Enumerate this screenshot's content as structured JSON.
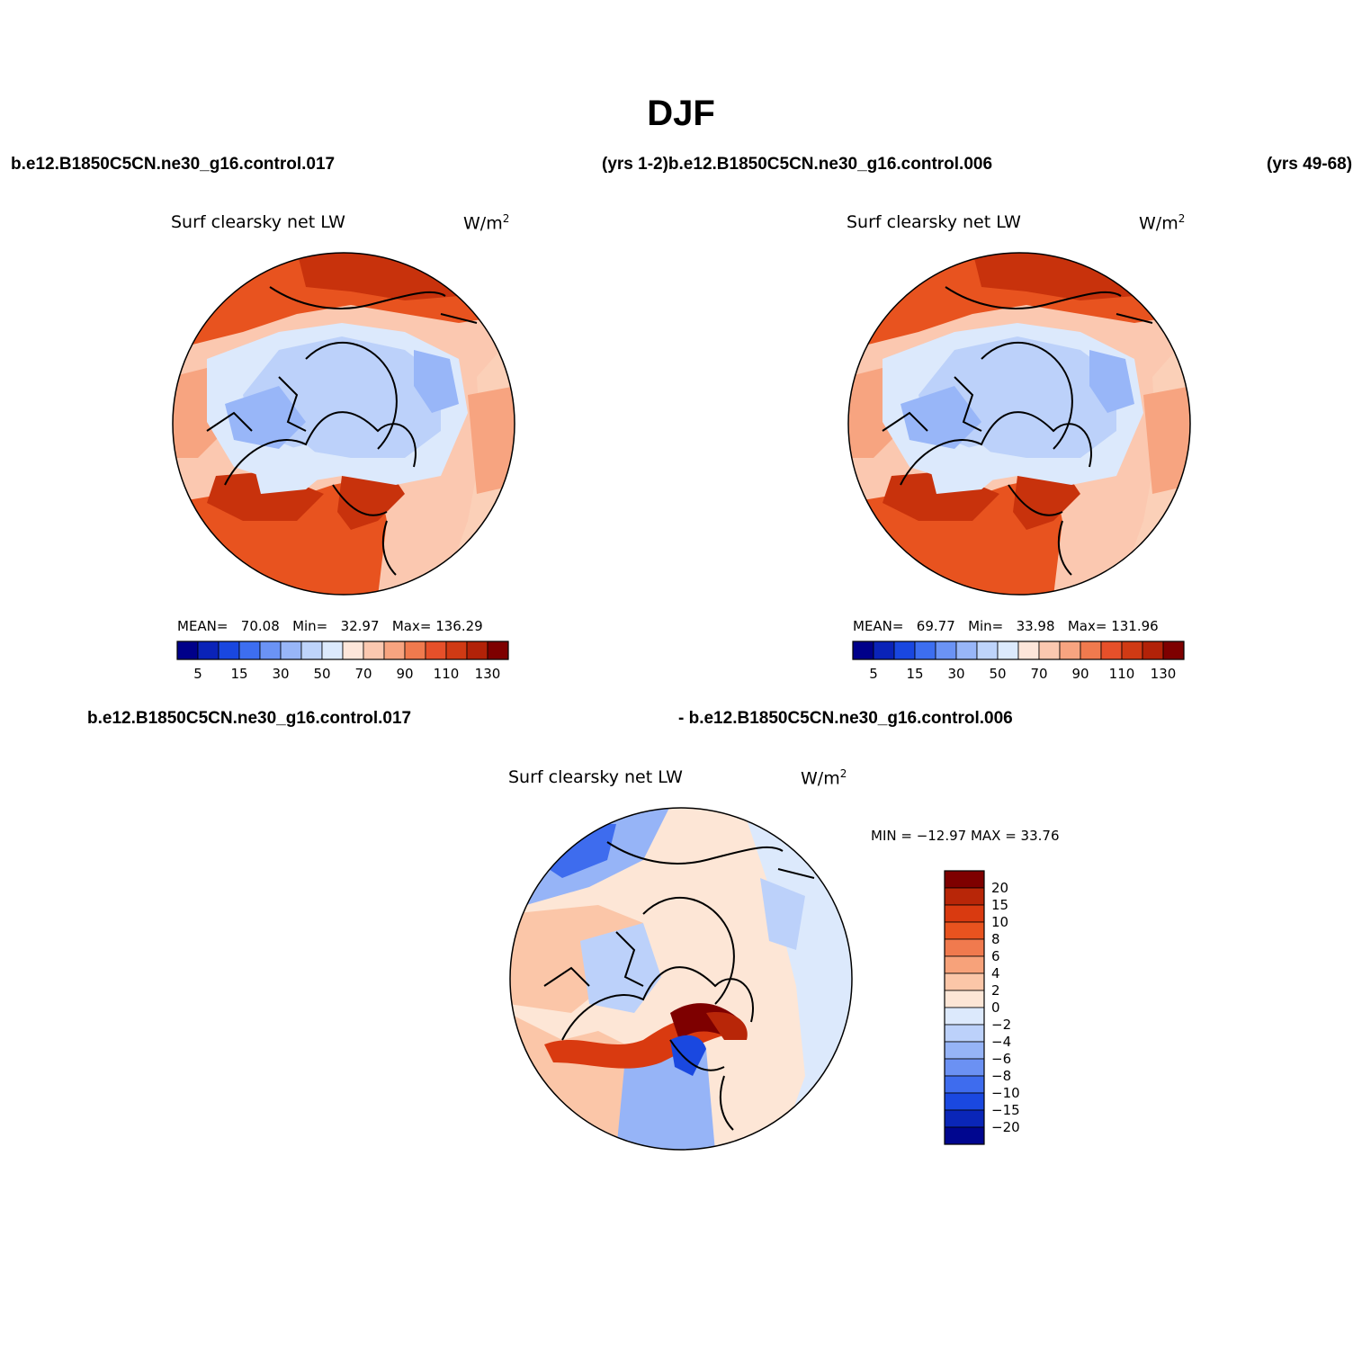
{
  "figure": {
    "title": "DJF",
    "top_left_case": "b.e12.B1850C5CN.ne30_g16.control.017",
    "top_mid_label": "(yrs 1-2)b.e12.B1850C5CN.ne30_g16.control.006",
    "top_right_label": "(yrs 49-68)",
    "bottom_left_case": "b.e12.B1850C5CN.ne30_g16.control.017",
    "bottom_right_case": "- b.e12.B1850C5CN.ne30_g16.control.006"
  },
  "panels": [
    {
      "title": "Surf clearsky net LW",
      "units_base": "W/m",
      "units_exp": "2",
      "mean_label": "MEAN=",
      "mean": "70.08",
      "min_label": "Min=",
      "min": "32.97",
      "max_label": "Max=",
      "max": "136.29"
    },
    {
      "title": "Surf clearsky net LW",
      "units_base": "W/m",
      "units_exp": "2",
      "mean_label": "MEAN=",
      "mean": "69.77",
      "min_label": "Min=",
      "min": "33.98",
      "max_label": "Max=",
      "max": "131.96"
    },
    {
      "title": "Surf clearsky net LW",
      "units_base": "W/m",
      "units_exp": "2",
      "minmax_text": "MIN = −12.97 MAX =   33.76"
    }
  ],
  "colorbar_main": {
    "colors": [
      "#00008a",
      "#0a23b8",
      "#1947e0",
      "#3d6ef0",
      "#6b93f5",
      "#98b6f8",
      "#bed4fb",
      "#dceafd",
      "#fde6da",
      "#fbc8b0",
      "#f7a480",
      "#f07a4e",
      "#e6502a",
      "#d03a14",
      "#b22208",
      "#7e0000"
    ],
    "tick_labels": [
      "5",
      "15",
      "30",
      "50",
      "70",
      "90",
      "110",
      "130"
    ]
  },
  "colorbar_diff": {
    "colors": [
      "#7e0000",
      "#b82608",
      "#d93a10",
      "#e8531f",
      "#f07a4e",
      "#f7a27a",
      "#fbc6a8",
      "#fde6d6",
      "#dce9fc",
      "#bcd1fa",
      "#96b4f7",
      "#6b91f3",
      "#3e6cee",
      "#1a48e0",
      "#0a26b8",
      "#00068f"
    ],
    "tick_labels": [
      "20",
      "15",
      "10",
      "8",
      "6",
      "4",
      "2",
      "0",
      "−2",
      "−4",
      "−6",
      "−8",
      "−10",
      "−15",
      "−20"
    ]
  },
  "map_palette": {
    "ocean_warm": "#e8531f",
    "ocean_hot": "#c8320c",
    "ocean_mid": "#f7a480",
    "ocean_light": "#fbd0b8",
    "ice_blue": "#bcd1fa",
    "ice_light": "#dce9fc",
    "ice_mid": "#98b6f8",
    "diff_red": "#d03a14",
    "diff_blue": "#3e6cee"
  }
}
